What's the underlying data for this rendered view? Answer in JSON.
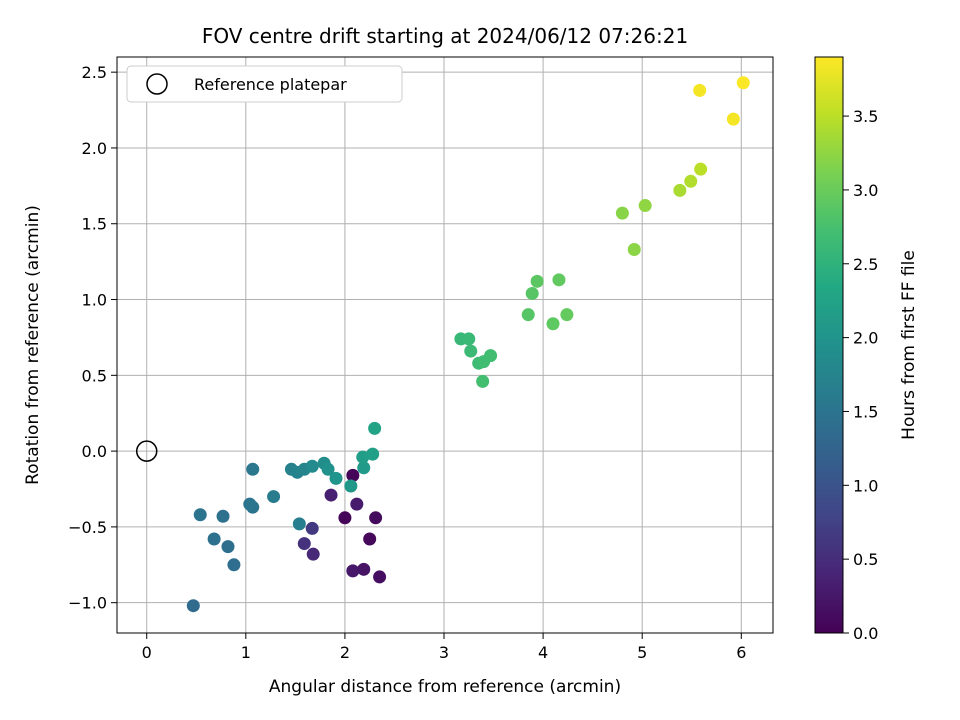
{
  "chart_data": {
    "type": "scatter",
    "title": "FOV centre drift starting at 2024/06/12 07:26:21",
    "xlabel": "Angular distance from reference (arcmin)",
    "ylabel": "Rotation from reference (arcmin)",
    "xlim": [
      -0.3,
      6.32
    ],
    "ylim": [
      -1.2,
      2.6
    ],
    "xticks": [
      0,
      1,
      2,
      3,
      4,
      5,
      6
    ],
    "xtick_labels": [
      "0",
      "1",
      "2",
      "3",
      "4",
      "5",
      "6"
    ],
    "yticks": [
      -1.0,
      -0.5,
      0.0,
      0.5,
      1.0,
      1.5,
      2.0,
      2.5
    ],
    "ytick_labels": [
      "−1.0",
      "−0.5",
      "0.0",
      "0.5",
      "1.0",
      "1.5",
      "2.0",
      "2.5"
    ],
    "grid": true,
    "legend": {
      "placement": "top-left",
      "entries": [
        "Reference platepar"
      ]
    },
    "reference": {
      "x": 0,
      "y": 0,
      "label": "Reference platepar"
    },
    "colorbar": {
      "label": "Hours from first FF file",
      "colormap": "viridis",
      "range": [
        0.0,
        3.9
      ],
      "ticks": [
        0.0,
        0.5,
        1.0,
        1.5,
        2.0,
        2.5,
        3.0,
        3.5
      ],
      "tick_labels": [
        "0.0",
        "0.5",
        "1.0",
        "1.5",
        "2.0",
        "2.5",
        "3.0",
        "3.5"
      ]
    },
    "points": [
      {
        "x": 2.08,
        "y": -0.16,
        "t": 0.05
      },
      {
        "x": 2.0,
        "y": -0.44,
        "t": 0.05
      },
      {
        "x": 2.25,
        "y": -0.58,
        "t": 0.08
      },
      {
        "x": 2.31,
        "y": -0.44,
        "t": 0.12
      },
      {
        "x": 2.35,
        "y": -0.83,
        "t": 0.15
      },
      {
        "x": 2.19,
        "y": -0.78,
        "t": 0.2
      },
      {
        "x": 2.08,
        "y": -0.79,
        "t": 0.25
      },
      {
        "x": 2.12,
        "y": -0.35,
        "t": 0.3
      },
      {
        "x": 1.86,
        "y": -0.29,
        "t": 0.35
      },
      {
        "x": 1.68,
        "y": -0.68,
        "t": 0.45
      },
      {
        "x": 1.59,
        "y": -0.61,
        "t": 0.55
      },
      {
        "x": 1.67,
        "y": -0.51,
        "t": 0.65
      },
      {
        "x": 0.47,
        "y": -1.02,
        "t": 1.35
      },
      {
        "x": 0.88,
        "y": -0.75,
        "t": 1.4
      },
      {
        "x": 0.82,
        "y": -0.63,
        "t": 1.42
      },
      {
        "x": 0.68,
        "y": -0.58,
        "t": 1.45
      },
      {
        "x": 0.77,
        "y": -0.43,
        "t": 1.45
      },
      {
        "x": 0.54,
        "y": -0.42,
        "t": 1.48
      },
      {
        "x": 1.07,
        "y": -0.37,
        "t": 1.5
      },
      {
        "x": 1.04,
        "y": -0.35,
        "t": 1.52
      },
      {
        "x": 1.07,
        "y": -0.12,
        "t": 1.55
      },
      {
        "x": 1.28,
        "y": -0.3,
        "t": 1.6
      },
      {
        "x": 1.54,
        "y": -0.48,
        "t": 1.65
      },
      {
        "x": 1.46,
        "y": -0.12,
        "t": 1.7
      },
      {
        "x": 1.52,
        "y": -0.14,
        "t": 1.72
      },
      {
        "x": 1.59,
        "y": -0.12,
        "t": 1.75
      },
      {
        "x": 1.67,
        "y": -0.1,
        "t": 1.85
      },
      {
        "x": 1.79,
        "y": -0.08,
        "t": 1.9
      },
      {
        "x": 1.83,
        "y": -0.12,
        "t": 1.95
      },
      {
        "x": 1.91,
        "y": -0.18,
        "t": 2.0
      },
      {
        "x": 2.06,
        "y": -0.23,
        "t": 2.05
      },
      {
        "x": 2.19,
        "y": -0.11,
        "t": 2.1
      },
      {
        "x": 2.18,
        "y": -0.04,
        "t": 2.15
      },
      {
        "x": 2.28,
        "y": -0.02,
        "t": 2.2
      },
      {
        "x": 2.3,
        "y": 0.15,
        "t": 2.25
      },
      {
        "x": 3.17,
        "y": 0.74,
        "t": 2.6
      },
      {
        "x": 3.25,
        "y": 0.74,
        "t": 2.62
      },
      {
        "x": 3.27,
        "y": 0.66,
        "t": 2.64
      },
      {
        "x": 3.35,
        "y": 0.58,
        "t": 2.66
      },
      {
        "x": 3.4,
        "y": 0.59,
        "t": 2.68
      },
      {
        "x": 3.47,
        "y": 0.63,
        "t": 2.7
      },
      {
        "x": 3.39,
        "y": 0.46,
        "t": 2.72
      },
      {
        "x": 3.85,
        "y": 0.9,
        "t": 2.85
      },
      {
        "x": 3.89,
        "y": 1.04,
        "t": 2.87
      },
      {
        "x": 3.94,
        "y": 1.12,
        "t": 2.9
      },
      {
        "x": 4.1,
        "y": 0.84,
        "t": 2.92
      },
      {
        "x": 4.16,
        "y": 1.13,
        "t": 2.94
      },
      {
        "x": 4.24,
        "y": 0.9,
        "t": 2.96
      },
      {
        "x": 4.8,
        "y": 1.57,
        "t": 3.2
      },
      {
        "x": 4.92,
        "y": 1.33,
        "t": 3.22
      },
      {
        "x": 5.03,
        "y": 1.62,
        "t": 3.25
      },
      {
        "x": 5.38,
        "y": 1.72,
        "t": 3.4
      },
      {
        "x": 5.49,
        "y": 1.78,
        "t": 3.45
      },
      {
        "x": 5.59,
        "y": 1.86,
        "t": 3.5
      },
      {
        "x": 5.58,
        "y": 2.38,
        "t": 3.85
      },
      {
        "x": 5.92,
        "y": 2.19,
        "t": 3.85
      },
      {
        "x": 6.02,
        "y": 2.43,
        "t": 3.88
      }
    ]
  }
}
